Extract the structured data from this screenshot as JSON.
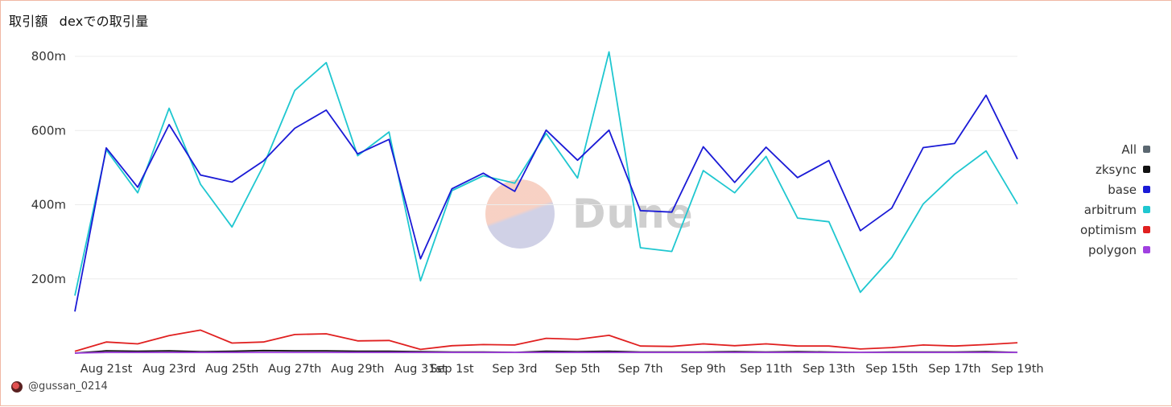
{
  "header": {
    "title": "取引額",
    "subtitle": "dexでの取引量"
  },
  "watermark": {
    "text": "Dune"
  },
  "footer": {
    "author": "@gussan_0214"
  },
  "chart_data": {
    "type": "line",
    "x": [
      "Aug 20th",
      "Aug 21st",
      "Aug 22nd",
      "Aug 23rd",
      "Aug 24th",
      "Aug 25th",
      "Aug 26th",
      "Aug 27th",
      "Aug 28th",
      "Aug 29th",
      "Aug 30th",
      "Aug 31st",
      "Sep 1st",
      "Sep 2nd",
      "Sep 3rd",
      "Sep 4th",
      "Sep 5th",
      "Sep 6th",
      "Sep 7th",
      "Sep 8th",
      "Sep 9th",
      "Sep 10th",
      "Sep 11th",
      "Sep 12th",
      "Sep 13th",
      "Sep 14th",
      "Sep 15th",
      "Sep 16th",
      "Sep 17th",
      "Sep 18th",
      "Sep 19th"
    ],
    "tick_labels": [
      "Aug 21st",
      "Aug 23rd",
      "Aug 25th",
      "Aug 27th",
      "Aug 29th",
      "Aug 31st",
      "Sep 1st",
      "Sep 3rd",
      "Sep 5th",
      "Sep 7th",
      "Sep 9th",
      "Sep 11th",
      "Sep 13th",
      "Sep 15th",
      "Sep 17th",
      "Sep 19th"
    ],
    "y_ticks": [
      {
        "value": 200000000,
        "label": "200m"
      },
      {
        "value": 400000000,
        "label": "400m"
      },
      {
        "value": 600000000,
        "label": "600m"
      },
      {
        "value": 800000000,
        "label": "800m"
      }
    ],
    "ylim": [
      0,
      800000000
    ],
    "grid": true,
    "legend_position": "right",
    "legend": [
      {
        "name": "All",
        "color": "#5b6770"
      },
      {
        "name": "zksync",
        "color": "#111111"
      },
      {
        "name": "base",
        "color": "#1a1ad6"
      },
      {
        "name": "arbitrum",
        "color": "#1fc7d0"
      },
      {
        "name": "optimism",
        "color": "#e02020"
      },
      {
        "name": "polygon",
        "color": "#a040e0"
      }
    ],
    "series": [
      {
        "name": "arbitrum",
        "color": "#1fc7d0",
        "values": [
          155,
          548,
          432,
          660,
          455,
          340,
          505,
          708,
          783,
          532,
          596,
          195,
          438,
          478,
          458,
          592,
          472,
          812,
          284,
          274,
          492,
          432,
          530,
          364,
          354,
          164,
          258,
          402,
          482,
          545,
          402
        ]
      },
      {
        "name": "base",
        "color": "#1a1ad6",
        "values": [
          112,
          553,
          447,
          616,
          480,
          461,
          518,
          606,
          655,
          537,
          576,
          254,
          443,
          485,
          436,
          601,
          520,
          601,
          384,
          380,
          556,
          460,
          555,
          473,
          519,
          330,
          391,
          554,
          565,
          695,
          523
        ]
      },
      {
        "name": "optimism",
        "color": "#e02020",
        "values": [
          5,
          30,
          25,
          47,
          62,
          27,
          30,
          50,
          52,
          33,
          34,
          10,
          20,
          23,
          22,
          40,
          37,
          48,
          19,
          18,
          25,
          20,
          25,
          19,
          19,
          11,
          15,
          22,
          19,
          23,
          28
        ]
      },
      {
        "name": "zksync",
        "color": "#111111",
        "values": [
          0,
          6,
          5,
          6,
          4,
          5,
          7,
          6,
          6,
          5,
          5,
          4,
          3,
          3,
          2,
          5,
          4,
          5,
          3,
          3,
          3,
          4,
          3,
          4,
          3,
          2,
          3,
          3,
          3,
          4,
          2
        ]
      },
      {
        "name": "polygon",
        "color": "#a040e0",
        "values": [
          0,
          2,
          2,
          2,
          2,
          2,
          2,
          2,
          2,
          2,
          2,
          2,
          2,
          2,
          2,
          2,
          2,
          2,
          2,
          2,
          2,
          2,
          2,
          2,
          2,
          2,
          2,
          2,
          2,
          2,
          2
        ]
      }
    ],
    "value_unit": "m"
  }
}
